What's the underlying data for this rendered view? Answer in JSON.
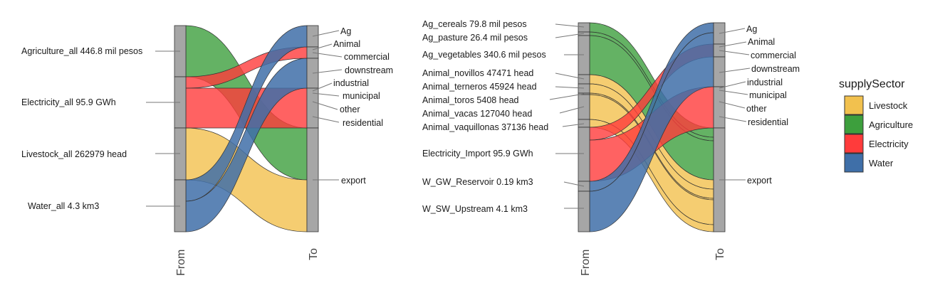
{
  "colors": {
    "Livestock": "#f2c14e",
    "Agriculture": "#3d9f3d",
    "Electricity": "#ff3b3b",
    "Water": "#3f6fa8",
    "stratum": "#a6a6a6"
  },
  "legend": {
    "title": "supplySector",
    "items": [
      "Livestock",
      "Agriculture",
      "Electricity",
      "Water"
    ]
  },
  "left": {
    "axis_from": "From",
    "axis_to": "To",
    "from_labels": [
      "Agriculture_all 446.8 mil pesos",
      "Electricity_all 95.9 GWh",
      "Livestock_all 262979 head",
      "Water_all 4.3 km3"
    ],
    "to_labels": [
      "Ag",
      "Animal",
      "commercial",
      "downstream",
      "industrial",
      "municipal",
      "other",
      "residential",
      "export"
    ]
  },
  "right": {
    "axis_from": "From",
    "axis_to": "To",
    "from_labels": [
      "Ag_cereals 79.8 mil pesos",
      "Ag_pasture 26.4 mil pesos",
      "Ag_vegetables 340.6 mil pesos",
      "Animal_novillos 47471 head",
      "Animal_terneros 45924 head",
      "Animal_toros 5408 head",
      "Animal_vacas 127040 head",
      "Animal_vaquillonas 37136 head",
      "Electricity_Import 95.9 GWh",
      "W_GW_Reservoir 0.19 km3",
      "W_SW_Upstream 4.1 km3"
    ],
    "to_labels": [
      "Ag",
      "Animal",
      "commercial",
      "downstream",
      "industrial",
      "municipal",
      "other",
      "residential",
      "export"
    ]
  }
}
